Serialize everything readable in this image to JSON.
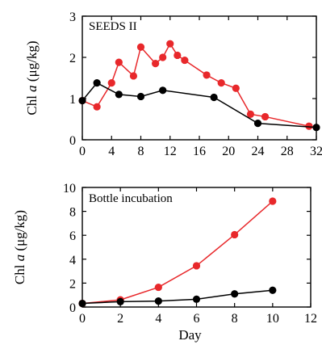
{
  "chart_data": [
    {
      "type": "line",
      "panel_label": "SEEDS II",
      "ylabel": "Chl a (μg/kg)",
      "ylabel_prefix": "Chl ",
      "ylabel_italic": "a",
      "ylabel_suffix": " (μg/kg)",
      "xlim": [
        0,
        32
      ],
      "ylim": [
        0,
        3
      ],
      "xticks": [
        0,
        4,
        8,
        12,
        16,
        20,
        24,
        28,
        32
      ],
      "yticks": [
        0,
        1,
        2,
        3
      ],
      "series": [
        {
          "color": "#e8282b",
          "x": [
            0,
            2,
            4,
            5,
            7,
            8,
            10,
            11,
            12,
            13,
            14,
            17,
            19,
            21,
            23,
            25,
            31
          ],
          "y": [
            0.95,
            0.8,
            1.38,
            1.88,
            1.55,
            2.25,
            1.85,
            2.0,
            2.33,
            2.05,
            1.93,
            1.57,
            1.38,
            1.25,
            0.62,
            0.56,
            0.33
          ]
        },
        {
          "color": "#000000",
          "x": [
            0,
            2,
            5,
            8,
            11,
            18,
            24,
            32
          ],
          "y": [
            0.95,
            1.38,
            1.1,
            1.05,
            1.2,
            1.03,
            0.4,
            0.3
          ]
        }
      ]
    },
    {
      "type": "line",
      "panel_label": "Bottle incubation",
      "xlabel": "Day",
      "ylabel": "Chl a (μg/kg)",
      "ylabel_prefix": "Chl ",
      "ylabel_italic": "a",
      "ylabel_suffix": " (μg/kg)",
      "xlim": [
        0,
        12
      ],
      "ylim": [
        0,
        10
      ],
      "xticks": [
        0,
        2,
        4,
        6,
        8,
        10,
        12
      ],
      "yticks": [
        0,
        2,
        4,
        6,
        8,
        10
      ],
      "series": [
        {
          "color": "#e8282b",
          "x": [
            0,
            2,
            4,
            6,
            8,
            10
          ],
          "y": [
            0.3,
            0.6,
            1.65,
            3.45,
            6.05,
            8.85
          ]
        },
        {
          "color": "#000000",
          "x": [
            0,
            2,
            4,
            6,
            8,
            10
          ],
          "y": [
            0.3,
            0.45,
            0.5,
            0.65,
            1.1,
            1.4
          ]
        }
      ]
    }
  ]
}
